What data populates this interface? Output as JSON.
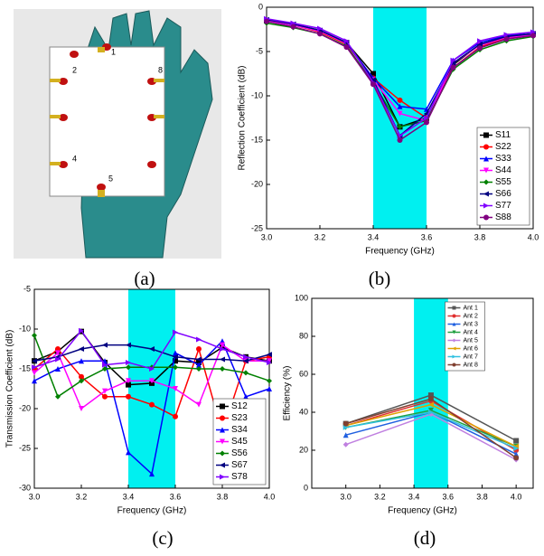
{
  "figure": {
    "captions": [
      "(a)",
      "(b)",
      "(c)",
      "(d)"
    ],
    "antenna_labels": [
      "1",
      "2",
      "8",
      "4",
      "5"
    ]
  },
  "chart_data": [
    {
      "type": "line",
      "x_label": "Frequency (GHz)",
      "y_label": "Reflection Coefficient (dB)",
      "x": [
        3.0,
        3.1,
        3.2,
        3.3,
        3.4,
        3.5,
        3.6,
        3.7,
        3.8,
        3.9,
        4.0
      ],
      "xlim": [
        3.0,
        4.0
      ],
      "xticks": [
        {
          "value": 3.0,
          "label": "3.0"
        },
        3.2,
        3.4,
        3.6,
        3.8,
        {
          "value": 4.0,
          "label": "4.0"
        }
      ],
      "ylim": [
        -25,
        0
      ],
      "yticks": [
        -25,
        -20,
        -15,
        -10,
        -5,
        0
      ],
      "highlight": [
        3.4,
        3.6
      ],
      "highlight_color": "#00f0f0",
      "legend": "lower right",
      "series": [
        {
          "name": "S11",
          "color": "#000000",
          "marker": "square",
          "values": [
            -1.5,
            -2,
            -2.7,
            -4,
            -7.5,
            -13.5,
            -12.5,
            -6.5,
            -4.2,
            -3.3,
            -3
          ]
        },
        {
          "name": "S22",
          "color": "#ff0000",
          "marker": "circle",
          "values": [
            -1.5,
            -2,
            -2.8,
            -4.2,
            -8,
            -10.5,
            -12.5,
            -6.8,
            -4.5,
            -3.5,
            -3.2
          ]
        },
        {
          "name": "S33",
          "color": "#0000ff",
          "marker": "triangle",
          "values": [
            -1.5,
            -2,
            -2.6,
            -4,
            -8,
            -11.2,
            -11.5,
            -6,
            -4,
            -3.2,
            -2.8
          ]
        },
        {
          "name": "S44",
          "color": "#ff00ff",
          "marker": "triangle-down",
          "values": [
            -1.5,
            -2,
            -2.7,
            -4.1,
            -8.2,
            -12,
            -12.8,
            -6.3,
            -4.3,
            -3.4,
            -3.1
          ]
        },
        {
          "name": "S55",
          "color": "#008000",
          "marker": "diamond",
          "values": [
            -1.8,
            -2.3,
            -3,
            -4.4,
            -8.5,
            -13.5,
            -12.8,
            -7,
            -4.8,
            -3.8,
            -3.3
          ]
        },
        {
          "name": "S66",
          "color": "#000080",
          "marker": "triangle-left",
          "values": [
            -1.4,
            -1.9,
            -2.6,
            -4,
            -8.2,
            -14.5,
            -12,
            -6.3,
            -4.2,
            -3.3,
            -3
          ]
        },
        {
          "name": "S77",
          "color": "#8000ff",
          "marker": "triangle-right",
          "values": [
            -1.3,
            -1.8,
            -2.4,
            -3.8,
            -8.5,
            -14.5,
            -12.5,
            -6,
            -3.8,
            -3.1,
            -2.8
          ]
        },
        {
          "name": "S88",
          "color": "#800080",
          "marker": "circle",
          "values": [
            -1.6,
            -2.2,
            -3,
            -4.5,
            -8.7,
            -15,
            -13,
            -6.8,
            -4.6,
            -3.6,
            -3.2
          ]
        }
      ]
    },
    {
      "type": "line",
      "x_label": "Frequency (GHz)",
      "y_label": "Transmission Coefficient (dB)",
      "x": [
        3.0,
        3.1,
        3.2,
        3.3,
        3.4,
        3.5,
        3.6,
        3.7,
        3.8,
        3.9,
        4.0
      ],
      "xlim": [
        3.0,
        4.0
      ],
      "xticks": [
        {
          "value": 3.0,
          "label": "3.0"
        },
        3.2,
        3.4,
        3.6,
        3.8,
        {
          "value": 4.0,
          "label": "4.0"
        }
      ],
      "ylim": [
        -30,
        -5
      ],
      "yticks": [
        -30,
        -25,
        -20,
        -15,
        -10,
        -5
      ],
      "highlight": [
        3.4,
        3.6
      ],
      "highlight_color": "#00f0f0",
      "legend": "lower right",
      "series": [
        {
          "name": "S12",
          "color": "#000000",
          "marker": "square",
          "values": [
            -14,
            -12.8,
            -10.3,
            -14.2,
            -17,
            -16.8,
            -14,
            -14.2,
            -12.3,
            -13.5,
            -14
          ]
        },
        {
          "name": "S23",
          "color": "#ff0000",
          "marker": "circle",
          "values": [
            -15,
            -12.5,
            -16,
            -18.5,
            -18.5,
            -19.5,
            -21,
            -12.5,
            -23,
            -14,
            -13.5
          ]
        },
        {
          "name": "S34",
          "color": "#0000ff",
          "marker": "triangle",
          "values": [
            -16.5,
            -15,
            -14,
            -14,
            -25.5,
            -28.2,
            -13,
            -14.5,
            -11.5,
            -18.5,
            -17.5
          ]
        },
        {
          "name": "S45",
          "color": "#ff00ff",
          "marker": "triangle-down",
          "values": [
            -15.5,
            -13,
            -20,
            -17.8,
            -16.5,
            -16.5,
            -17.5,
            -19.5,
            -12,
            -14,
            -14
          ]
        },
        {
          "name": "S56",
          "color": "#008000",
          "marker": "diamond",
          "values": [
            -10.8,
            -18.5,
            -16.5,
            -15,
            -14.8,
            -14.8,
            -14.8,
            -15,
            -15,
            -15.5,
            -16.5
          ]
        },
        {
          "name": "S67",
          "color": "#000080",
          "marker": "triangle-left",
          "values": [
            -14,
            -13.5,
            -12.5,
            -12,
            -12,
            -12.5,
            -13.5,
            -13.8,
            -13.8,
            -14,
            -13.2
          ]
        },
        {
          "name": "S78",
          "color": "#8000ff",
          "marker": "triangle-right",
          "values": [
            -14.8,
            -13.8,
            -10.2,
            -14.5,
            -14.2,
            -15,
            -10.4,
            -11.3,
            -12.5,
            -13.5,
            -14.2
          ]
        }
      ]
    },
    {
      "type": "line",
      "x_label": "Frequency (GHz)",
      "y_label": "Efficiency (%)",
      "x": [
        3.0,
        3.5,
        4.0
      ],
      "xlim": [
        2.8,
        4.1
      ],
      "xticks": [
        {
          "value": 3.0,
          "label": "3.0"
        },
        3.2,
        3.4,
        3.6,
        3.8,
        {
          "value": 4.0,
          "label": "4.0"
        }
      ],
      "ylim": [
        0,
        100
      ],
      "yticks": [
        0,
        20,
        40,
        60,
        80,
        100
      ],
      "highlight": [
        3.4,
        3.6
      ],
      "highlight_color": "#00f0f0",
      "legend": "upper center",
      "series": [
        {
          "name": "Ant 1",
          "color": "#555555",
          "marker": "square",
          "values": [
            34,
            49,
            25
          ]
        },
        {
          "name": "Ant 2",
          "color": "#e03030",
          "marker": "circle",
          "values": [
            33,
            46,
            20
          ]
        },
        {
          "name": "Ant 3",
          "color": "#2060e0",
          "marker": "triangle",
          "values": [
            28,
            40,
            18
          ]
        },
        {
          "name": "Ant 4",
          "color": "#20a040",
          "marker": "triangle-down",
          "values": [
            32,
            41,
            22
          ]
        },
        {
          "name": "Ant 5",
          "color": "#c080e0",
          "marker": "diamond",
          "values": [
            23,
            39,
            15
          ]
        },
        {
          "name": "Ant 6",
          "color": "#e0a000",
          "marker": "triangle-left",
          "values": [
            33,
            44,
            22
          ]
        },
        {
          "name": "Ant 7",
          "color": "#30c0e0",
          "marker": "triangle-right",
          "values": [
            32,
            40,
            21
          ]
        },
        {
          "name": "Ant 8",
          "color": "#804030",
          "marker": "circle",
          "values": [
            34,
            47,
            16
          ]
        }
      ]
    }
  ]
}
